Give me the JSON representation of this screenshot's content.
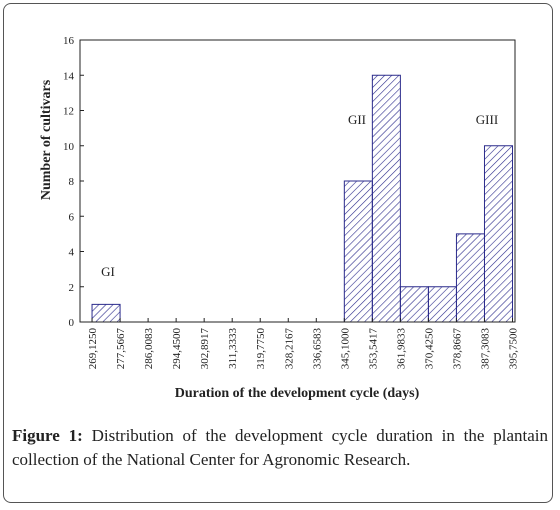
{
  "chart_data": {
    "type": "histogram",
    "xlabel": "Duration of the development cycle (days)",
    "ylabel": "Number of cultivars",
    "bins": [
      269.125,
      277.5667,
      286.0083,
      294.45,
      302.8917,
      311.3333,
      319.775,
      328.2167,
      336.6583,
      345.1,
      353.5417,
      361.9833,
      370.425,
      378.8667,
      387.3083,
      395.75
    ],
    "values": [
      1,
      0,
      0,
      0,
      0,
      0,
      0,
      0,
      0,
      8,
      14,
      2,
      2,
      5,
      10
    ],
    "color": "#2b2b8c",
    "xlim": [
      265.5,
      396.5
    ],
    "ylim": [
      0,
      16
    ],
    "xticks": [
      {
        "value": 269.125,
        "label": "269,1250"
      },
      {
        "value": 277.5667,
        "label": "277,5667"
      },
      {
        "value": 286.0083,
        "label": "286,0083"
      },
      {
        "value": 294.45,
        "label": "294,4500"
      },
      {
        "value": 302.8917,
        "label": "302,8917"
      },
      {
        "value": 311.3333,
        "label": "311,3333"
      },
      {
        "value": 319.775,
        "label": "319,7750"
      },
      {
        "value": 328.2167,
        "label": "328,2167"
      },
      {
        "value": 336.6583,
        "label": "336,6583"
      },
      {
        "value": 345.1,
        "label": "345,1000"
      },
      {
        "value": 353.5417,
        "label": "353,5417"
      },
      {
        "value": 361.9833,
        "label": "361,9833"
      },
      {
        "value": 370.425,
        "label": "370,4250"
      },
      {
        "value": 378.8667,
        "label": "378,8667"
      },
      {
        "value": 387.3083,
        "label": "387,3083"
      },
      {
        "value": 395.75,
        "label": "395,7500"
      }
    ],
    "yticks": [
      0,
      2,
      4,
      6,
      8,
      10,
      12,
      14,
      16
    ],
    "annotations": [
      "GI",
      "GII",
      "GIII"
    ]
  },
  "caption": {
    "label": "Figure 1:",
    "text": "Distribution of the development cycle duration in the plantain collection of the National Center for Agronomic Research."
  }
}
